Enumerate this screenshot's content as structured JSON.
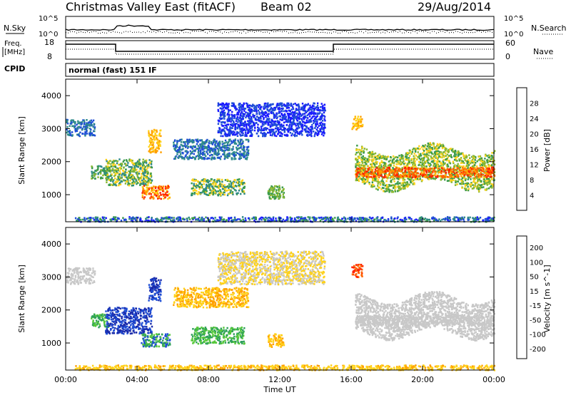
{
  "header": {
    "station": "Christmas Valley East (fitACF)",
    "beam": "Beam 02",
    "date": "29/Aug/2014"
  },
  "top_panels": {
    "nsky_label": "N.Sky",
    "nsearch_label": "N.Search",
    "nsky_ticks": [
      "10^5",
      "10^0"
    ],
    "nsearch_ticks": [
      "10^5",
      "10^0"
    ],
    "freq_label_1": "Freq.",
    "freq_label_2": "[MHz]",
    "freq_ticks": [
      "18",
      "8"
    ],
    "nave_label": "Nave",
    "nave_ticks": [
      "60",
      "0"
    ],
    "cpid_label": "CPID",
    "cpid_value": "normal (fast) 151 IF"
  },
  "chart_data": [
    {
      "type": "heatmap",
      "name": "power",
      "ylabel": "Slant Range [km]",
      "yticks": [
        1000,
        2000,
        3000,
        4000
      ],
      "ylim": [
        180,
        4500
      ],
      "xlabel": "Time UT",
      "xticks": [
        "00:00",
        "04:00",
        "08:00",
        "12:00",
        "16:00",
        "20:00",
        "00:00"
      ],
      "xlim_hours": [
        0,
        24
      ],
      "colorbar": {
        "label": "Power [dB]",
        "ticks": [
          4,
          8,
          12,
          16,
          20,
          24,
          28
        ],
        "colors": [
          "#1a1aff",
          "#1f4fd6",
          "#2e8a8a",
          "#3a9a4a",
          "#8ab832",
          "#ffd21a",
          "#ffa000",
          "#ff6400",
          "#ff2000"
        ]
      }
    },
    {
      "type": "heatmap",
      "name": "velocity",
      "ylabel": "Slant Range [km]",
      "yticks": [
        1000,
        2000,
        3000,
        4000
      ],
      "ylim": [
        180,
        4500
      ],
      "xlabel": "Time UT",
      "xticks": [
        "00:00",
        "04:00",
        "08:00",
        "12:00",
        "16:00",
        "20:00",
        "00:00"
      ],
      "xlim_hours": [
        0,
        24
      ],
      "colorbar": {
        "label": "Velocity [m s^-1]",
        "ticks": [
          200,
          100,
          50,
          15,
          -15,
          -50,
          -100,
          -200
        ],
        "colors": [
          "#1a2aaa",
          "#1f4fd6",
          "#2ea05a",
          "#56c83a",
          "#c8c8c8",
          "#ffd21a",
          "#ffa000",
          "#ff6400",
          "#ff2000"
        ]
      }
    }
  ]
}
